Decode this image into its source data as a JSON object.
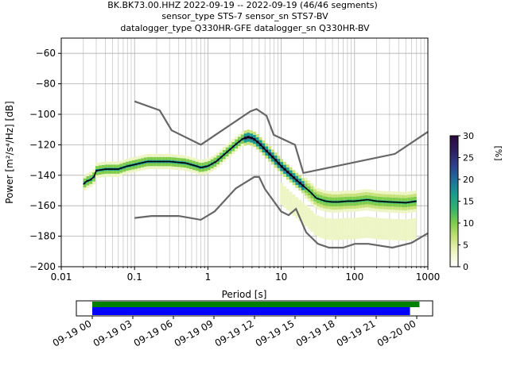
{
  "chart_data": {
    "type": "heatmap",
    "title": {
      "line1": "BK.BK73.00.HHZ   2022-09-19 -- 2022-09-19  (46/46 segments)",
      "line2": "sensor_type STS-7 sensor_sn STS7-BV",
      "line3": "datalogger_type Q330HR-GFE datalogger_sn Q330HR-BV"
    },
    "xlabel": "Period [s]",
    "ylabel": "Power [m²/s⁴/Hz] [dB]",
    "x_scale": "log",
    "xlim": [
      0.01,
      1000
    ],
    "ylim": [
      -200,
      -50
    ],
    "x_ticks": [
      {
        "value": 0.01,
        "label": "0.01"
      },
      {
        "value": 0.1,
        "label": "0.1"
      },
      {
        "value": 1,
        "label": "1"
      },
      {
        "value": 10,
        "label": "10"
      },
      {
        "value": 100,
        "label": "100"
      },
      {
        "value": 1000,
        "label": "1000"
      }
    ],
    "y_ticks": [
      -60,
      -80,
      -100,
      -120,
      -140,
      -160,
      -180,
      -200
    ],
    "grid": true,
    "colorbar": {
      "label": "[%]",
      "range": [
        0,
        30
      ],
      "ticks": [
        0,
        5,
        10,
        15,
        20,
        25,
        30
      ],
      "colors": [
        "#ffffff",
        "#eef5c4",
        "#c8e27a",
        "#7fcc4a",
        "#33b26e",
        "#199a8f",
        "#1e6e9a",
        "#2e3d8a",
        "#2d1e5e",
        "#2a0a3c"
      ]
    },
    "mode_curve": {
      "name": "mode",
      "color": "#000000",
      "x": [
        0.02,
        0.022,
        0.025,
        0.028,
        0.03,
        0.04,
        0.06,
        0.08,
        0.1,
        0.15,
        0.2,
        0.3,
        0.5,
        0.7,
        0.8,
        1.0,
        1.3,
        1.8,
        2.5,
        3.0,
        3.6,
        4.2,
        5.0,
        6.0,
        8.0,
        10,
        13,
        16,
        20,
        25,
        30,
        40,
        50,
        60,
        80,
        100,
        150,
        200,
        300,
        500,
        700
      ],
      "y": [
        -146,
        -144,
        -143,
        -141,
        -137,
        -136,
        -136,
        -134,
        -133,
        -131,
        -131,
        -131,
        -132,
        -134,
        -135,
        -134,
        -131,
        -125,
        -119,
        -116,
        -115,
        -116,
        -119,
        -123,
        -129,
        -134,
        -139,
        -143,
        -147,
        -151,
        -155,
        -157,
        -157.5,
        -157.5,
        -157,
        -157,
        -156,
        -157,
        -157.5,
        -158,
        -157
      ]
    },
    "noise_model_high": {
      "name": "NHNM",
      "color": "#666666",
      "x": [
        0.1,
        0.22,
        0.32,
        0.8,
        3.8,
        4.6,
        6.3,
        7.9,
        15.4,
        20,
        354.8,
        1000
      ],
      "y": [
        -91.5,
        -97.4,
        -110.5,
        -120,
        -98,
        -96.5,
        -101,
        -113.5,
        -120,
        -138.5,
        -126,
        -111.5
      ]
    },
    "noise_model_low": {
      "name": "NLNM",
      "color": "#666666",
      "x": [
        0.1,
        0.17,
        0.4,
        0.8,
        1.24,
        2.4,
        4.3,
        5.0,
        6.0,
        10,
        12.6,
        15.9,
        21.9,
        31.6,
        45,
        70,
        101,
        154,
        328,
        600,
        1000
      ],
      "y": [
        -168,
        -166.7,
        -166.7,
        -169.2,
        -163.7,
        -148.6,
        -141.1,
        -141.1,
        -149,
        -163.8,
        -166.2,
        -162.1,
        -177.5,
        -185,
        -187.5,
        -187.5,
        -185,
        -185,
        -187.5,
        -184.4,
        -178
      ]
    },
    "timeline": {
      "start": "2022-09-19T00:00",
      "end": "2022-09-20T00:00",
      "tick_labels": [
        "09-19 00",
        "09-19 03",
        "09-19 06",
        "09-19 09",
        "09-19 12",
        "09-19 15",
        "09-19 18",
        "09-19 21",
        "09-20 00"
      ],
      "data_bar": {
        "color": "#008000",
        "start_hour": 0,
        "end_hour": 24.2
      },
      "psd_bar": {
        "color": "#0000ff",
        "start_hour": 0,
        "end_hour": 23.5
      }
    }
  }
}
